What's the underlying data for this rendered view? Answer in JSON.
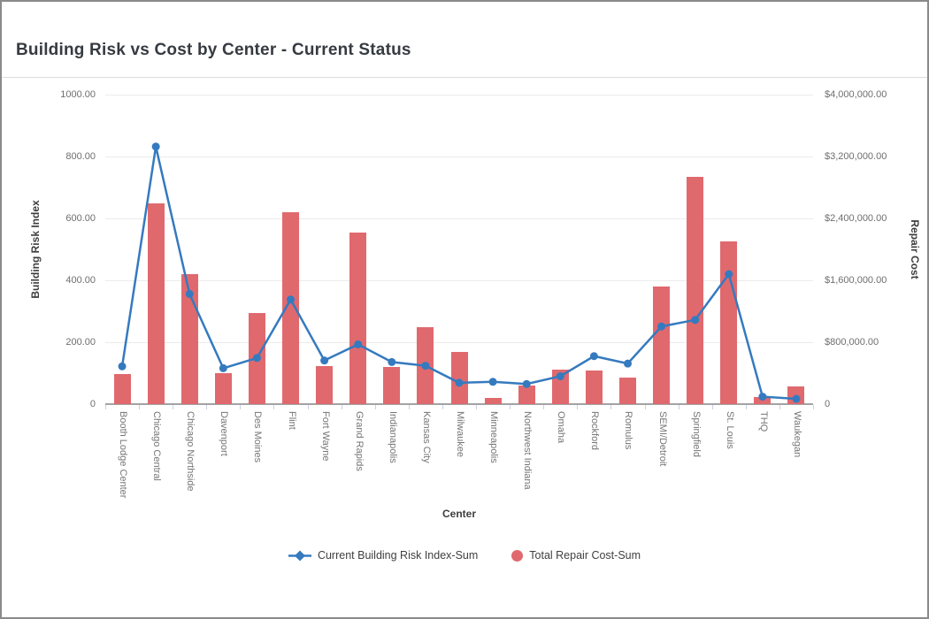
{
  "window": {
    "background": "#ffffff",
    "border_color": "#8a8a8a"
  },
  "header": {
    "title": "Building Risk vs Cost by Center - Current Status"
  },
  "colors": {
    "line_series": "#357abf",
    "bar_series": "#e0696e",
    "gridline": "#ebebeb",
    "axis_baseline": "#a3a3a3",
    "tick_text": "#6e6e6e"
  },
  "chart_data": {
    "type": "combo-bar-line",
    "title": "Building Risk vs Cost by Center - Current Status",
    "categories": [
      "Booth Lodge Center",
      "Chicago Central",
      "Chicago Northside",
      "Davenport",
      "Des Moines",
      "Flint",
      "Fort Wayne",
      "Grand Rapids",
      "Indianapolis",
      "Kansas City",
      "Milwaukee",
      "Minneapolis",
      "Northwest Indiana",
      "Omaha",
      "Rockford",
      "Romulus",
      "SEMI/Detroit",
      "Springfield",
      "St. Louis",
      "THQ",
      "Waukegan"
    ],
    "series": [
      {
        "name": "Current Building Risk Index-Sum",
        "type": "line",
        "axis": "left",
        "color": "#357abf",
        "values": [
          122,
          832,
          356,
          116,
          149,
          338,
          141,
          193,
          136,
          124,
          69,
          72,
          65,
          90,
          155,
          131,
          251,
          272,
          420,
          24,
          17
        ]
      },
      {
        "name": "Total Repair Cost-Sum",
        "type": "bar",
        "axis": "right",
        "color": "#e0696e",
        "values": [
          390000,
          2590000,
          1675000,
          400000,
          1175000,
          2475000,
          490000,
          2220000,
          475000,
          990000,
          675000,
          75000,
          240000,
          450000,
          430000,
          345000,
          1520000,
          2940000,
          2100000,
          95000,
          230000
        ]
      }
    ],
    "left_axis": {
      "label": "Building Risk Index",
      "min": 0,
      "max": 1000,
      "ticks": [
        "1000.00",
        "800.00",
        "600.00",
        "400.00",
        "200.00",
        "0"
      ]
    },
    "right_axis": {
      "label": "Repair Cost",
      "min": 0,
      "max": 4000000,
      "ticks": [
        "$4,000,000.00",
        "$3,200,000.00",
        "$2,400,000.00",
        "$1,600,000.00",
        "$800,000.00",
        "0"
      ]
    },
    "x_axis": {
      "label": "Center"
    },
    "legend": {
      "position": "bottom-center",
      "items": [
        {
          "label": "Current Building Risk Index-Sum",
          "marker": "line-diamond",
          "color": "#357abf"
        },
        {
          "label": "Total Repair Cost-Sum",
          "marker": "circle",
          "color": "#e0696e"
        }
      ]
    },
    "grid": "horizontal-only"
  }
}
